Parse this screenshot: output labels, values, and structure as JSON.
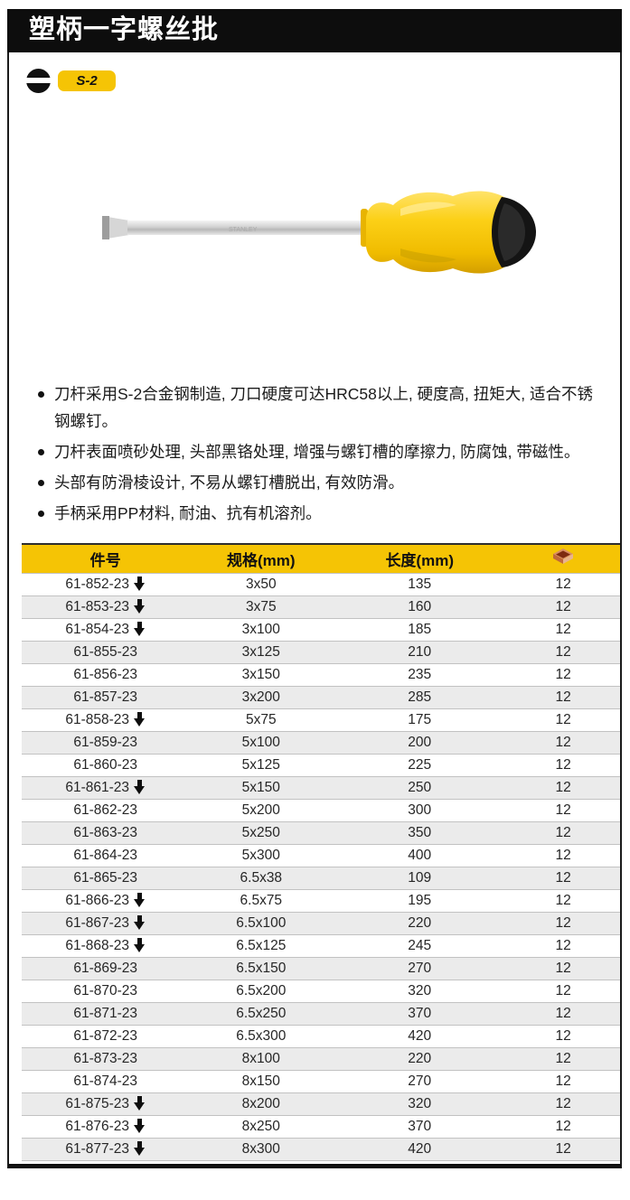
{
  "page": {
    "title": "塑柄一字螺丝批",
    "steel_badge": "S-2"
  },
  "product": {
    "shaft_text": "STANLEY"
  },
  "features": [
    "刀杆采用S-2合金钢制造, 刀口硬度可达HRC58以上, 硬度高, 扭矩大, 适合不锈钢螺钉。",
    "刀杆表面喷砂处理, 头部黑铬处理, 增强与螺钉槽的摩擦力, 防腐蚀, 带磁性。",
    "头部有防滑棱设计, 不易从螺钉槽脱出, 有效防滑。",
    "手柄采用PP材料, 耐油、抗有机溶剂。"
  ],
  "table": {
    "headers": [
      "件号",
      "规格(mm)",
      "长度(mm)"
    ],
    "qty_header_icon": "carton-icon",
    "rows": [
      {
        "part": "61-852-23",
        "arrow": true,
        "spec": "3x50",
        "length": "135",
        "qty": "12"
      },
      {
        "part": "61-853-23",
        "arrow": true,
        "spec": "3x75",
        "length": "160",
        "qty": "12"
      },
      {
        "part": "61-854-23",
        "arrow": true,
        "spec": "3x100",
        "length": "185",
        "qty": "12"
      },
      {
        "part": "61-855-23",
        "arrow": false,
        "spec": "3x125",
        "length": "210",
        "qty": "12"
      },
      {
        "part": "61-856-23",
        "arrow": false,
        "spec": "3x150",
        "length": "235",
        "qty": "12"
      },
      {
        "part": "61-857-23",
        "arrow": false,
        "spec": "3x200",
        "length": "285",
        "qty": "12"
      },
      {
        "part": "61-858-23",
        "arrow": true,
        "spec": "5x75",
        "length": "175",
        "qty": "12"
      },
      {
        "part": "61-859-23",
        "arrow": false,
        "spec": "5x100",
        "length": "200",
        "qty": "12"
      },
      {
        "part": "61-860-23",
        "arrow": false,
        "spec": "5x125",
        "length": "225",
        "qty": "12"
      },
      {
        "part": "61-861-23",
        "arrow": true,
        "spec": "5x150",
        "length": "250",
        "qty": "12"
      },
      {
        "part": "61-862-23",
        "arrow": false,
        "spec": "5x200",
        "length": "300",
        "qty": "12"
      },
      {
        "part": "61-863-23",
        "arrow": false,
        "spec": "5x250",
        "length": "350",
        "qty": "12"
      },
      {
        "part": "61-864-23",
        "arrow": false,
        "spec": "5x300",
        "length": "400",
        "qty": "12"
      },
      {
        "part": "61-865-23",
        "arrow": false,
        "spec": "6.5x38",
        "length": "109",
        "qty": "12"
      },
      {
        "part": "61-866-23",
        "arrow": true,
        "spec": "6.5x75",
        "length": "195",
        "qty": "12"
      },
      {
        "part": "61-867-23",
        "arrow": true,
        "spec": "6.5x100",
        "length": "220",
        "qty": "12"
      },
      {
        "part": "61-868-23",
        "arrow": true,
        "spec": "6.5x125",
        "length": "245",
        "qty": "12"
      },
      {
        "part": "61-869-23",
        "arrow": false,
        "spec": "6.5x150",
        "length": "270",
        "qty": "12"
      },
      {
        "part": "61-870-23",
        "arrow": false,
        "spec": "6.5x200",
        "length": "320",
        "qty": "12"
      },
      {
        "part": "61-871-23",
        "arrow": false,
        "spec": "6.5x250",
        "length": "370",
        "qty": "12"
      },
      {
        "part": "61-872-23",
        "arrow": false,
        "spec": "6.5x300",
        "length": "420",
        "qty": "12"
      },
      {
        "part": "61-873-23",
        "arrow": false,
        "spec": "8x100",
        "length": "220",
        "qty": "12"
      },
      {
        "part": "61-874-23",
        "arrow": false,
        "spec": "8x150",
        "length": "270",
        "qty": "12"
      },
      {
        "part": "61-875-23",
        "arrow": true,
        "spec": "8x200",
        "length": "320",
        "qty": "12"
      },
      {
        "part": "61-876-23",
        "arrow": true,
        "spec": "8x250",
        "length": "370",
        "qty": "12"
      },
      {
        "part": "61-877-23",
        "arrow": true,
        "spec": "8x300",
        "length": "420",
        "qty": "12"
      }
    ]
  },
  "colors": {
    "brand_yellow": "#f5c405",
    "header_bar": "#0d0d0d",
    "row_alt_gray": "#ebebeb",
    "carton_top": "#d98e62",
    "carton_inner": "#7e2b10",
    "carton_side": "#c0683a"
  }
}
